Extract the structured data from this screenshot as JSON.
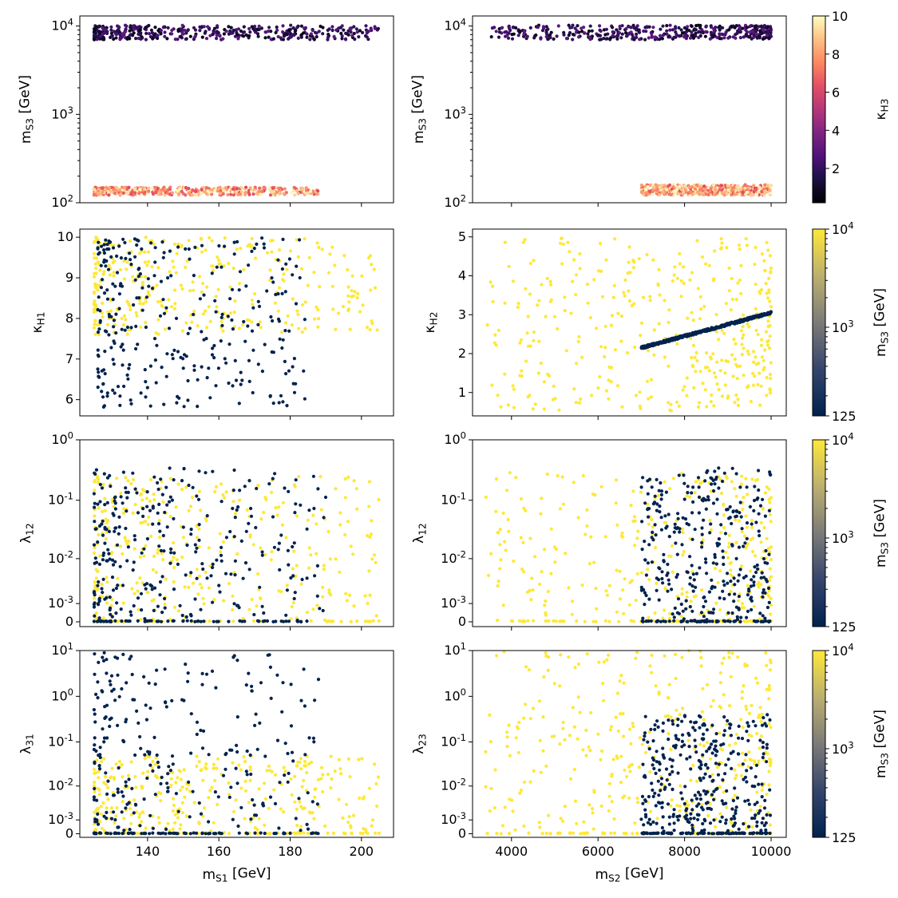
{
  "chart_data": [
    {
      "id": "p11",
      "type": "scatter",
      "xlabel": "",
      "ylabel": "m_{S3}  [GeV]",
      "xlim": [
        121,
        209
      ],
      "yscale": "log",
      "ylim": [
        100,
        13000
      ],
      "xticks": [
        140,
        160,
        180,
        200
      ],
      "show_xticklabels": false,
      "yticks": [
        {
          "v": 100,
          "label": "10^2"
        },
        {
          "v": 1000,
          "label": "10^3"
        },
        {
          "v": 10000,
          "label": "10^4"
        }
      ],
      "color_by": "kappa_H3",
      "colormap": "magma",
      "series": [
        {
          "name": "m_S3 ~ 10^4 GeV band",
          "x_range": [
            125,
            205
          ],
          "y_range": [
            7000,
            10200
          ],
          "c_range": [
            0.5,
            3.2
          ],
          "n": 420,
          "density": "left"
        },
        {
          "name": "m_S3 ~ 125 GeV band",
          "x_range": [
            125,
            188
          ],
          "y_range": [
            122,
            150
          ],
          "c_range": [
            6,
            10
          ],
          "n": 420,
          "density": "left"
        }
      ]
    },
    {
      "id": "p12",
      "type": "scatter",
      "xlabel": "",
      "ylabel": "m_{S3}  [GeV]",
      "xlim": [
        3100,
        10350
      ],
      "yscale": "log",
      "ylim": [
        100,
        13000
      ],
      "xticks": [
        4000,
        6000,
        8000,
        10000
      ],
      "show_xticklabels": false,
      "yticks": [
        {
          "v": 100,
          "label": "10^2"
        },
        {
          "v": 1000,
          "label": "10^3"
        },
        {
          "v": 10000,
          "label": "10^4"
        }
      ],
      "color_by": "kappa_H3",
      "colormap": "magma",
      "series": [
        {
          "name": "m_S3 ~ 10^4 GeV band",
          "x_range": [
            3500,
            10000
          ],
          "y_range": [
            7000,
            10200
          ],
          "c_range": [
            0.5,
            3.2
          ],
          "n": 420,
          "density": "right"
        },
        {
          "name": "m_S3 ~ 125 GeV band",
          "x_range": [
            7000,
            10000
          ],
          "y_range": [
            122,
            160
          ],
          "c_range": [
            6,
            10
          ],
          "n": 420,
          "density": "uniform"
        }
      ]
    },
    {
      "id": "p21",
      "type": "scatter",
      "xlabel": "",
      "ylabel": "κ_{H1}",
      "xlim": [
        121,
        209
      ],
      "yscale": "linear",
      "ylim": [
        5.6,
        10.2
      ],
      "xticks": [
        140,
        160,
        180,
        200
      ],
      "show_xticklabels": false,
      "yticks": [
        {
          "v": 6,
          "label": "6"
        },
        {
          "v": 7,
          "label": "7"
        },
        {
          "v": 8,
          "label": "8"
        },
        {
          "v": 9,
          "label": "9"
        },
        {
          "v": 10,
          "label": "10"
        }
      ],
      "color_by": "m_S3",
      "colormap": "cividis",
      "series": [
        {
          "name": "m_S3 = 10^4 GeV",
          "x_range": [
            125,
            205
          ],
          "y_range": [
            7.6,
            10
          ],
          "c": 10000,
          "n": 330,
          "density": "left"
        },
        {
          "name": "m_S3 = 125 GeV",
          "x_range": [
            126,
            185
          ],
          "y_range": [
            5.8,
            10
          ],
          "c": 125,
          "n": 310,
          "density": "left"
        }
      ]
    },
    {
      "id": "p22",
      "type": "scatter",
      "xlabel": "",
      "ylabel": "κ_{H2}",
      "xlim": [
        3100,
        10350
      ],
      "yscale": "linear",
      "ylim": [
        0.4,
        5.2
      ],
      "xticks": [
        4000,
        6000,
        8000,
        10000
      ],
      "show_xticklabels": false,
      "yticks": [
        {
          "v": 1,
          "label": "1"
        },
        {
          "v": 2,
          "label": "2"
        },
        {
          "v": 3,
          "label": "3"
        },
        {
          "v": 4,
          "label": "4"
        },
        {
          "v": 5,
          "label": "5"
        }
      ],
      "color_by": "m_S3",
      "colormap": "cividis",
      "series": [
        {
          "name": "m_S3 = 10^4 GeV",
          "x_range": [
            3400,
            10000
          ],
          "y_range": [
            0.5,
            5
          ],
          "c": 10000,
          "n": 380,
          "density": "right"
        },
        {
          "name": "m_S3 = 125 GeV (linear relation)",
          "x_from": 7000,
          "x_to": 10000,
          "y_from": 2.15,
          "y_to": 3.05,
          "c": 125,
          "n": 420
        }
      ]
    },
    {
      "id": "p31",
      "type": "scatter",
      "xlabel": "",
      "ylabel": "λ_{12}",
      "xlim": [
        121,
        209
      ],
      "yscale": "symlog",
      "linthresh": 0.001,
      "ylim": [
        -0.0002,
        1
      ],
      "xticks": [
        140,
        160,
        180,
        200
      ],
      "show_xticklabels": false,
      "yticks": [
        {
          "v": 0,
          "label": "0"
        },
        {
          "v": 0.001,
          "label": "10^-3"
        },
        {
          "v": 0.01,
          "label": "10^-2"
        },
        {
          "v": 0.1,
          "label": "10^-1"
        },
        {
          "v": 1,
          "label": "10^0"
        }
      ],
      "color_by": "m_S3",
      "colormap": "cividis",
      "series": [
        {
          "name": "m_S3 = 10^4 GeV",
          "x_range": [
            125,
            205
          ],
          "y_range": [
            0,
            0.25
          ],
          "c": 10000,
          "n": 380,
          "density": "left"
        },
        {
          "name": "m_S3 = 125 GeV",
          "x_range": [
            125,
            190
          ],
          "y_range": [
            0,
            0.35
          ],
          "c": 125,
          "n": 360,
          "density": "left"
        }
      ]
    },
    {
      "id": "p32",
      "type": "scatter",
      "xlabel": "",
      "ylabel": "λ_{12}",
      "xlim": [
        3100,
        10350
      ],
      "yscale": "symlog",
      "linthresh": 0.001,
      "ylim": [
        -0.0002,
        1
      ],
      "xticks": [
        4000,
        6000,
        8000,
        10000
      ],
      "show_xticklabels": false,
      "yticks": [
        {
          "v": 0,
          "label": "0"
        },
        {
          "v": 0.001,
          "label": "10^-3"
        },
        {
          "v": 0.01,
          "label": "10^-2"
        },
        {
          "v": 0.1,
          "label": "10^-1"
        },
        {
          "v": 1,
          "label": "10^0"
        }
      ],
      "color_by": "m_S3",
      "colormap": "cividis",
      "series": [
        {
          "name": "m_S3 = 10^4 GeV",
          "x_range": [
            3400,
            10000
          ],
          "y_range": [
            0,
            0.3
          ],
          "c": 10000,
          "n": 380,
          "density": "right"
        },
        {
          "name": "m_S3 = 125 GeV",
          "x_range": [
            7000,
            10000
          ],
          "y_range": [
            0,
            0.35
          ],
          "c": 125,
          "n": 380,
          "density": "uniform"
        }
      ]
    },
    {
      "id": "p41",
      "type": "scatter",
      "xlabel": "m_{S1}  [GeV]",
      "ylabel": "λ_{31}",
      "xlim": [
        121,
        209
      ],
      "yscale": "symlog",
      "linthresh": 0.001,
      "ylim": [
        -0.0002,
        10
      ],
      "xticks": [
        140,
        160,
        180,
        200
      ],
      "show_xticklabels": true,
      "xticklabels": [
        "140",
        "160",
        "180",
        "200"
      ],
      "yticks": [
        {
          "v": 0,
          "label": "0"
        },
        {
          "v": 0.001,
          "label": "10^-3"
        },
        {
          "v": 0.01,
          "label": "10^-2"
        },
        {
          "v": 0.1,
          "label": "10^-1"
        },
        {
          "v": 1,
          "label": "10^0"
        },
        {
          "v": 10,
          "label": "10^1"
        }
      ],
      "color_by": "m_S3",
      "colormap": "cividis",
      "series": [
        {
          "name": "m_S3 = 10^4 GeV",
          "x_range": [
            125,
            205
          ],
          "y_range": [
            0,
            0.05
          ],
          "c": 10000,
          "n": 380,
          "density": "left"
        },
        {
          "name": "m_S3 = 125 GeV",
          "x_range": [
            125,
            188
          ],
          "y_range": [
            0,
            9
          ],
          "c": 125,
          "n": 330,
          "density": "left"
        }
      ]
    },
    {
      "id": "p42",
      "type": "scatter",
      "xlabel": "m_{S2}  [GeV]",
      "ylabel": "λ_{23}",
      "xlim": [
        3100,
        10350
      ],
      "yscale": "symlog",
      "linthresh": 0.001,
      "ylim": [
        -0.0002,
        10
      ],
      "xticks": [
        4000,
        6000,
        8000,
        10000
      ],
      "show_xticklabels": true,
      "xticklabels": [
        "4000",
        "6000",
        "8000",
        "10000"
      ],
      "yticks": [
        {
          "v": 0,
          "label": "0"
        },
        {
          "v": 0.001,
          "label": "10^-3"
        },
        {
          "v": 0.01,
          "label": "10^-2"
        },
        {
          "v": 0.1,
          "label": "10^-1"
        },
        {
          "v": 1,
          "label": "10^0"
        },
        {
          "v": 10,
          "label": "10^1"
        }
      ],
      "color_by": "m_S3",
      "colormap": "cividis",
      "series": [
        {
          "name": "m_S3 = 10^4 GeV",
          "x_range": [
            3400,
            10000
          ],
          "y_range": [
            0,
            10
          ],
          "c": 10000,
          "n": 420,
          "density": "right"
        },
        {
          "name": "m_S3 = 125 GeV",
          "x_range": [
            7000,
            10000
          ],
          "y_range": [
            0,
            0.4
          ],
          "c": 125,
          "n": 420,
          "density": "uniform"
        }
      ]
    }
  ],
  "colorbars": [
    {
      "id": "cb1",
      "label": "κ_{H3}",
      "colormap": "magma",
      "scale": "linear",
      "range": [
        0.2,
        10
      ],
      "ticks": [
        {
          "v": 2,
          "label": "2"
        },
        {
          "v": 4,
          "label": "4"
        },
        {
          "v": 6,
          "label": "6"
        },
        {
          "v": 8,
          "label": "8"
        },
        {
          "v": 10,
          "label": "10"
        }
      ]
    },
    {
      "id": "cb2",
      "label": "m_{S3}  [GeV]",
      "colormap": "cividis",
      "scale": "log",
      "range": [
        125,
        10000
      ],
      "ticks": [
        {
          "v": 125,
          "label": "125"
        },
        {
          "v": 1000,
          "label": "10^3"
        },
        {
          "v": 10000,
          "label": "10^4"
        }
      ]
    },
    {
      "id": "cb3",
      "label": "m_{S3}  [GeV]",
      "colormap": "cividis",
      "scale": "log",
      "range": [
        125,
        10000
      ],
      "ticks": [
        {
          "v": 125,
          "label": "125"
        },
        {
          "v": 1000,
          "label": "10^3"
        },
        {
          "v": 10000,
          "label": "10^4"
        }
      ]
    },
    {
      "id": "cb4",
      "label": "m_{S3}  [GeV]",
      "colormap": "cividis",
      "scale": "log",
      "range": [
        125,
        10000
      ],
      "ticks": [
        {
          "v": 125,
          "label": "125"
        },
        {
          "v": 1000,
          "label": "10^3"
        },
        {
          "v": 10000,
          "label": "10^4"
        }
      ]
    }
  ],
  "colors": {
    "cividis_low": "#00224e",
    "cividis_high": "#fee838",
    "magma_low": "#000004",
    "magma_high": "#fcfdbf"
  }
}
